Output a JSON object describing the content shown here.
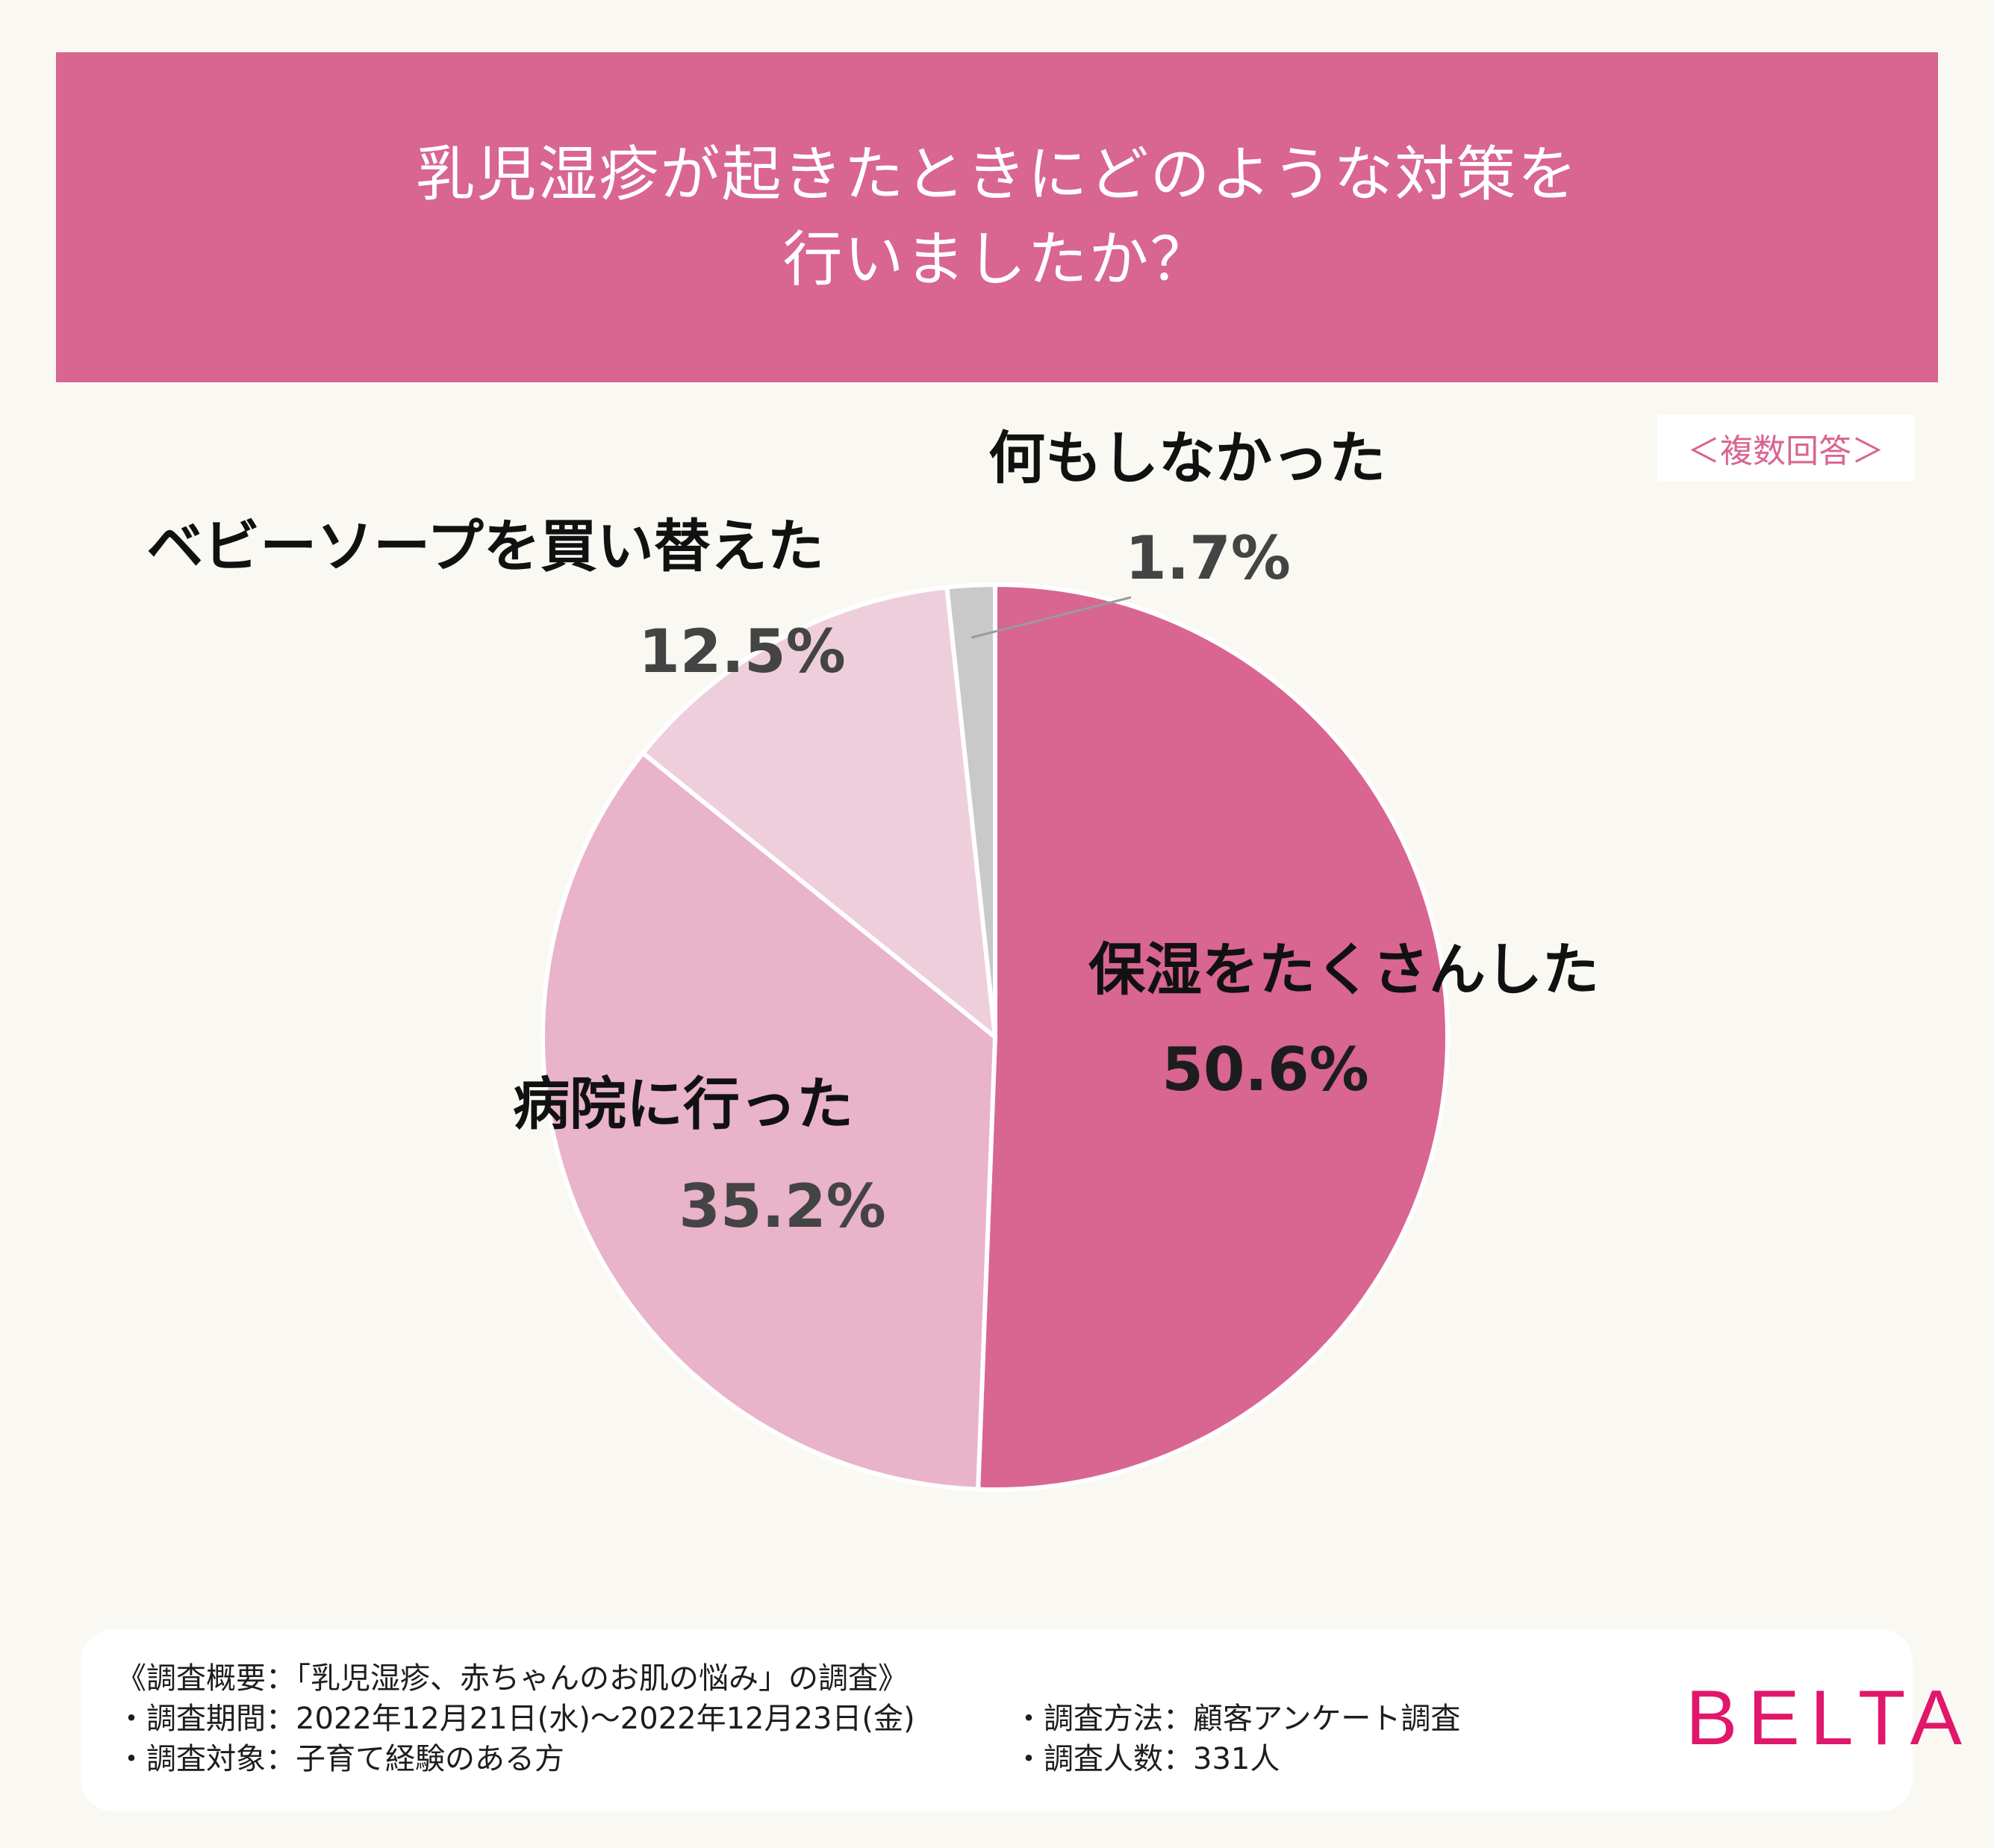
{
  "header": {
    "title_line1": "乳児湿疹が起きたときにどのような対策を",
    "title_line2": "行いましたか？"
  },
  "badge": "＜複数回答＞",
  "chart_data": {
    "type": "pie",
    "title": "乳児湿疹が起きたときにどのような対策を行いましたか？",
    "slices": [
      {
        "label": "保湿をたくさんした",
        "value": 50.6,
        "display": "50.6%",
        "color": "#d96591"
      },
      {
        "label": "病院に行った",
        "value": 35.2,
        "display": "35.2%",
        "color": "#e9b3c9"
      },
      {
        "label": "ベビーソープを買い替えた",
        "value": 12.5,
        "display": "12.5%",
        "color": "#efcedb"
      },
      {
        "label": "何もしなかった",
        "value": 1.7,
        "display": "1.7%",
        "color": "#c9c9c9"
      }
    ],
    "start": "12 o'clock",
    "direction": "clockwise"
  },
  "footer": {
    "summary": "《調査概要：「乳児湿疹、赤ちゃんのお肌の悩み」の調査》",
    "period": "・調査期間：2022年12月21日(水)～2022年12月23日(金)",
    "target": "・調査対象：子育て経験のある方",
    "method": "・調査方法：顧客アンケート調査",
    "count": "・調査人数：331人",
    "brand": "BELTA"
  }
}
